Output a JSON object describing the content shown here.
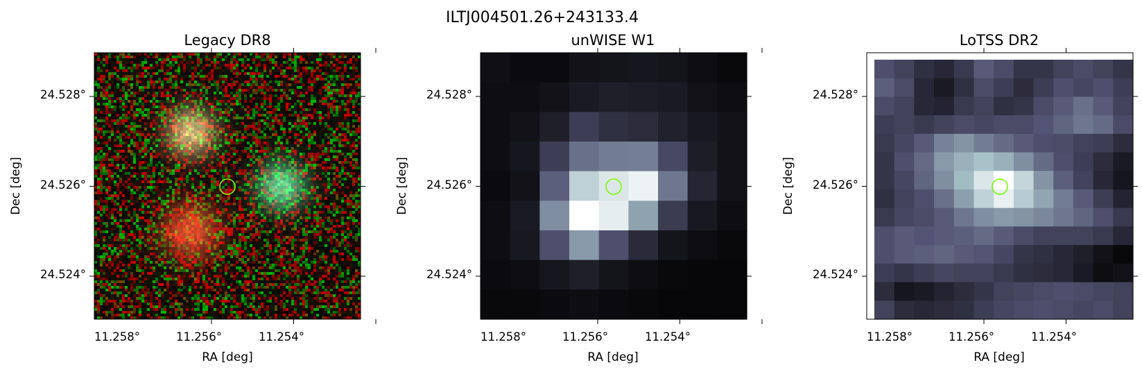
{
  "figure": {
    "title": "ILTJ004501.26+243133.4",
    "marker_color": "#7cfc00"
  },
  "panels": [
    {
      "name": "legacy",
      "title": "Legacy DR8",
      "xlabel": "RA [deg]",
      "ylabel": "Dec [deg]",
      "xticks": [
        "11.258°",
        "11.256°",
        "11.254°"
      ],
      "yticks": [
        "24.528°",
        "24.526°",
        "24.524°"
      ],
      "render": "rgb-noise",
      "sources": [
        {
          "ra": 11.2562,
          "dec": 24.5272,
          "color": "#c8b478",
          "radius": 0.0006
        },
        {
          "ra": 11.2562,
          "dec": 24.525,
          "color": "#d24828",
          "radius": 0.0007
        },
        {
          "ra": 11.254,
          "dec": 24.526,
          "color": "#5ac88c",
          "radius": 0.0006
        }
      ]
    },
    {
      "name": "unwise",
      "title": "unWISE W1",
      "xlabel": "RA [deg]",
      "ylabel": "Dec [deg]",
      "xticks": [
        "11.258°",
        "11.256°",
        "11.254°"
      ],
      "yticks": [
        "24.528°",
        "24.526°",
        "24.524°"
      ],
      "render": "grid",
      "cmap": "bone",
      "grid": [
        [
          0.07,
          0.05,
          0.05,
          0.08,
          0.09,
          0.1,
          0.09,
          0.06,
          0.04
        ],
        [
          0.06,
          0.06,
          0.08,
          0.12,
          0.14,
          0.13,
          0.12,
          0.08,
          0.06
        ],
        [
          0.06,
          0.08,
          0.14,
          0.28,
          0.22,
          0.2,
          0.15,
          0.11,
          0.08
        ],
        [
          0.06,
          0.1,
          0.28,
          0.48,
          0.52,
          0.53,
          0.33,
          0.13,
          0.08
        ],
        [
          0.05,
          0.08,
          0.42,
          0.82,
          0.9,
          0.95,
          0.5,
          0.17,
          0.08
        ],
        [
          0.06,
          0.12,
          0.58,
          1.0,
          0.93,
          0.65,
          0.27,
          0.11,
          0.06
        ],
        [
          0.06,
          0.11,
          0.36,
          0.62,
          0.36,
          0.19,
          0.09,
          0.06,
          0.04
        ],
        [
          0.05,
          0.06,
          0.1,
          0.14,
          0.09,
          0.06,
          0.04,
          0.03,
          0.03
        ],
        [
          0.04,
          0.04,
          0.05,
          0.06,
          0.05,
          0.04,
          0.03,
          0.03,
          0.03
        ]
      ]
    },
    {
      "name": "lotss",
      "title": "LoTSS DR2",
      "xlabel": "RA [deg]",
      "ylabel": "Dec [deg]",
      "xticks": [
        "11.258°",
        "11.256°",
        "11.254°"
      ],
      "yticks": [
        "24.528°",
        "24.526°",
        "24.524°"
      ],
      "render": "grid",
      "cmap": "bone",
      "grid": [
        [
          0.36,
          0.3,
          0.22,
          0.18,
          0.26,
          0.4,
          0.34,
          0.24,
          0.24,
          0.3,
          0.34,
          0.3,
          0.24
        ],
        [
          0.42,
          0.34,
          0.18,
          0.12,
          0.22,
          0.34,
          0.28,
          0.2,
          0.28,
          0.36,
          0.32,
          0.36,
          0.28
        ],
        [
          0.34,
          0.3,
          0.18,
          0.16,
          0.26,
          0.3,
          0.22,
          0.24,
          0.34,
          0.4,
          0.48,
          0.4,
          0.3
        ],
        [
          0.28,
          0.3,
          0.26,
          0.3,
          0.34,
          0.32,
          0.34,
          0.34,
          0.38,
          0.44,
          0.5,
          0.46,
          0.34
        ],
        [
          0.26,
          0.32,
          0.4,
          0.54,
          0.6,
          0.52,
          0.46,
          0.4,
          0.36,
          0.34,
          0.3,
          0.28,
          0.2
        ],
        [
          0.24,
          0.36,
          0.46,
          0.62,
          0.7,
          0.76,
          0.7,
          0.58,
          0.46,
          0.36,
          0.28,
          0.2,
          0.12
        ],
        [
          0.24,
          0.32,
          0.44,
          0.58,
          0.74,
          0.9,
          1.0,
          0.84,
          0.6,
          0.42,
          0.3,
          0.18,
          0.1
        ],
        [
          0.22,
          0.3,
          0.36,
          0.48,
          0.64,
          0.82,
          0.94,
          0.8,
          0.66,
          0.52,
          0.4,
          0.28,
          0.16
        ],
        [
          0.26,
          0.32,
          0.34,
          0.4,
          0.5,
          0.58,
          0.62,
          0.6,
          0.56,
          0.5,
          0.44,
          0.36,
          0.26
        ],
        [
          0.36,
          0.4,
          0.38,
          0.4,
          0.42,
          0.46,
          0.4,
          0.34,
          0.3,
          0.3,
          0.3,
          0.26,
          0.18
        ],
        [
          0.36,
          0.4,
          0.42,
          0.44,
          0.4,
          0.38,
          0.32,
          0.24,
          0.22,
          0.18,
          0.14,
          0.08,
          0.04
        ],
        [
          0.28,
          0.24,
          0.28,
          0.32,
          0.3,
          0.3,
          0.26,
          0.22,
          0.2,
          0.18,
          0.12,
          0.06,
          0.08
        ],
        [
          0.2,
          0.1,
          0.12,
          0.16,
          0.2,
          0.24,
          0.3,
          0.32,
          0.34,
          0.36,
          0.34,
          0.32,
          0.3
        ],
        [
          0.3,
          0.2,
          0.18,
          0.2,
          0.22,
          0.28,
          0.32,
          0.34,
          0.36,
          0.34,
          0.32,
          0.34,
          0.3
        ]
      ]
    }
  ]
}
